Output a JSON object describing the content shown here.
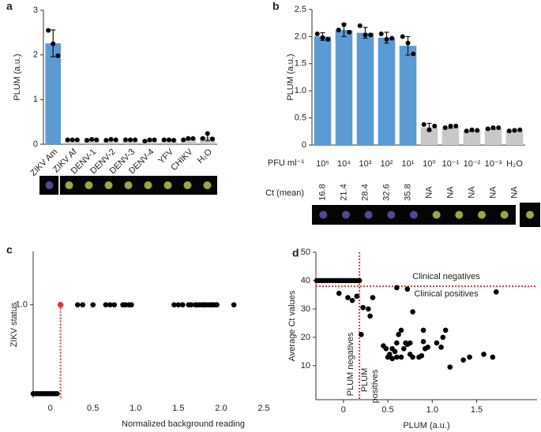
{
  "chart_data": [
    {
      "type": "bar",
      "panel": "a",
      "ylabel": "PLUM (a.u.)",
      "categories": [
        "ZIKV Am",
        "ZIKV Af",
        "DENV-1",
        "DENV-2",
        "DENV-3",
        "DENV-4",
        "YFV",
        "CHIKV",
        "H₂O"
      ],
      "values": [
        2.26,
        0.1,
        0.1,
        0.1,
        0.1,
        0.09,
        0.1,
        0.12,
        0.16
      ],
      "errors": [
        0.3,
        0.01,
        0.01,
        0.01,
        0.01,
        0.02,
        0.01,
        0.02,
        0.08
      ],
      "points": [
        [
          2.55,
          2.25,
          1.98
        ],
        [
          0.1,
          0.1,
          0.1
        ],
        [
          0.09,
          0.11,
          0.1
        ],
        [
          0.09,
          0.11,
          0.1
        ],
        [
          0.1,
          0.1,
          0.1
        ],
        [
          0.07,
          0.1,
          0.1
        ],
        [
          0.1,
          0.1,
          0.09
        ],
        [
          0.1,
          0.13,
          0.13
        ],
        [
          0.13,
          0.24,
          0.12
        ]
      ],
      "colors": [
        "#5b9bd5",
        "#c8c8c8",
        "#c8c8c8",
        "#c8c8c8",
        "#c8c8c8",
        "#c8c8c8",
        "#c8c8c8",
        "#c8c8c8",
        "#c8c8c8"
      ],
      "ylim": [
        0,
        3
      ],
      "yticks": [
        0,
        1,
        2,
        3
      ]
    },
    {
      "type": "bar",
      "panel": "b",
      "ylabel": "PLUM (a.u.)",
      "xlabel": "PFU ml⁻¹",
      "ct_label": "Ct (mean)",
      "ct_values": [
        16.8,
        21.4,
        28.4,
        32.6,
        35.8,
        "NA",
        "NA",
        "NA",
        "NA",
        "NA"
      ],
      "categories": [
        "10⁵",
        "10⁴",
        "10³",
        "10²",
        "10¹",
        "10⁰",
        "10⁻¹",
        "10⁻²",
        "10⁻³",
        "H₂O"
      ],
      "values": [
        2.0,
        2.12,
        2.07,
        1.98,
        1.83,
        0.33,
        0.33,
        0.27,
        0.31,
        0.27
      ],
      "errors": [
        0.07,
        0.12,
        0.1,
        0.1,
        0.17,
        0.07,
        0.02,
        0.02,
        0.02,
        0.02
      ],
      "points": [
        [
          2.05,
          1.98,
          1.95
        ],
        [
          2.12,
          2.22,
          2.08
        ],
        [
          2.2,
          2.03,
          2.03
        ],
        [
          2.05,
          1.95,
          1.97
        ],
        [
          2.0,
          1.88,
          1.68
        ],
        [
          0.38,
          0.28,
          0.35
        ],
        [
          0.32,
          0.35,
          0.35
        ],
        [
          0.26,
          0.28,
          0.27
        ],
        [
          0.3,
          0.32,
          0.32
        ],
        [
          0.26,
          0.27,
          0.28
        ]
      ],
      "colors": [
        "#5b9bd5",
        "#5b9bd5",
        "#5b9bd5",
        "#5b9bd5",
        "#5b9bd5",
        "#c8c8c8",
        "#c8c8c8",
        "#c8c8c8",
        "#c8c8c8",
        "#c8c8c8"
      ],
      "ylim": [
        0,
        2.5
      ],
      "yticks": [
        0,
        0.5,
        {
          "value": 1,
          "label": "1.0"
        },
        1.5,
        {
          "value": 2,
          "label": "2.0"
        },
        2.5
      ]
    },
    {
      "type": "scatter",
      "panel": "c",
      "ylabel": "ZIKV status",
      "xlabel": "Normalized background reading",
      "x": [
        -0.2,
        -0.18,
        -0.16,
        -0.14,
        -0.12,
        -0.1,
        -0.08,
        -0.06,
        -0.04,
        -0.02,
        0,
        0.02,
        0.04,
        0.06,
        0.08,
        0.32,
        0.38,
        0.5,
        0.65,
        0.7,
        0.75,
        0.85,
        0.88,
        0.92,
        0.95,
        1.45,
        1.5,
        1.55,
        1.62,
        1.65,
        1.7,
        1.72,
        1.75,
        1.78,
        1.8,
        1.82,
        1.85,
        1.88,
        1.9,
        1.92,
        1.95,
        2.15
      ],
      "y": [
        0,
        0,
        0,
        0,
        0,
        0,
        0,
        0,
        0,
        0,
        0,
        0,
        0,
        0,
        0,
        1,
        1,
        1,
        1,
        1,
        1,
        1,
        1,
        1,
        1,
        1,
        1,
        1,
        1,
        1,
        1,
        1,
        1,
        1,
        1,
        1,
        1,
        1,
        1,
        1,
        1,
        1
      ],
      "color": "#000000",
      "highlight": {
        "x": 0.12,
        "y": 1,
        "color": "#e0383a"
      },
      "x_threshold": 0.12,
      "threshold_color": "#e0383a",
      "xlim": [
        -0.2,
        2.5
      ],
      "ylim": [
        -0.05,
        1.6
      ],
      "xticks": [
        0,
        0.5,
        {
          "value": 1,
          "label": "1.0"
        },
        1.5,
        {
          "value": 2,
          "label": "2.0"
        },
        2.5
      ],
      "yticks": [
        {
          "value": 1,
          "label": "1.0"
        }
      ]
    },
    {
      "type": "scatter",
      "panel": "d",
      "ylabel": "Average Ct values",
      "xlabel": "PLUM (a.u.)",
      "x": [
        -0.3,
        -0.27,
        -0.24,
        -0.21,
        -0.18,
        -0.15,
        -0.12,
        -0.09,
        -0.06,
        -0.03,
        0,
        0.03,
        0.06,
        0.09,
        0.12,
        0.15,
        0.18,
        -0.05,
        0.05,
        0.1,
        0.15,
        0.22,
        0.28,
        0.3,
        0.33,
        0.2,
        0.45,
        0.48,
        0.5,
        0.52,
        0.55,
        0.55,
        0.58,
        0.6,
        0.6,
        0.62,
        0.65,
        0.68,
        0.7,
        0.72,
        0.75,
        0.75,
        0.78,
        0.6,
        0.72,
        0.85,
        0.88,
        0.9,
        0.92,
        0.95,
        0.9,
        0.65,
        0.78,
        1.05,
        1.1,
        1.12,
        1.15,
        1.2,
        1.35,
        1.42,
        1.58,
        1.68,
        1.72
      ],
      "y": [
        40,
        40,
        40,
        40,
        40,
        40,
        40,
        40,
        40,
        40,
        40,
        40,
        40,
        40,
        40,
        40,
        40,
        35.5,
        34,
        33,
        34.5,
        30.5,
        30,
        27.5,
        34,
        21,
        17,
        16,
        13,
        14,
        12.5,
        16,
        15,
        13,
        18,
        21,
        13,
        16,
        18,
        17.5,
        14,
        18,
        13,
        37.5,
        37,
        13,
        13.5,
        22.5,
        16,
        16.5,
        18.5,
        22.5,
        29,
        18,
        16.5,
        20,
        22.5,
        9.5,
        12,
        13,
        14,
        13,
        36
      ],
      "color": "#000000",
      "x_threshold": 0.18,
      "y_threshold": 38,
      "threshold_color": "#e0383a",
      "annotations": [
        "Clinical negatives",
        "Clinical positives",
        "PLUM negatives",
        "PLUM",
        "positives"
      ],
      "xlim": [
        -0.31,
        2.18
      ],
      "ylim": [
        -2,
        50
      ],
      "xticks": [
        0,
        0.5,
        {
          "value": 1,
          "label": "1.0"
        },
        1.5
      ],
      "yticks": [
        10,
        20,
        30,
        40,
        50
      ]
    }
  ]
}
